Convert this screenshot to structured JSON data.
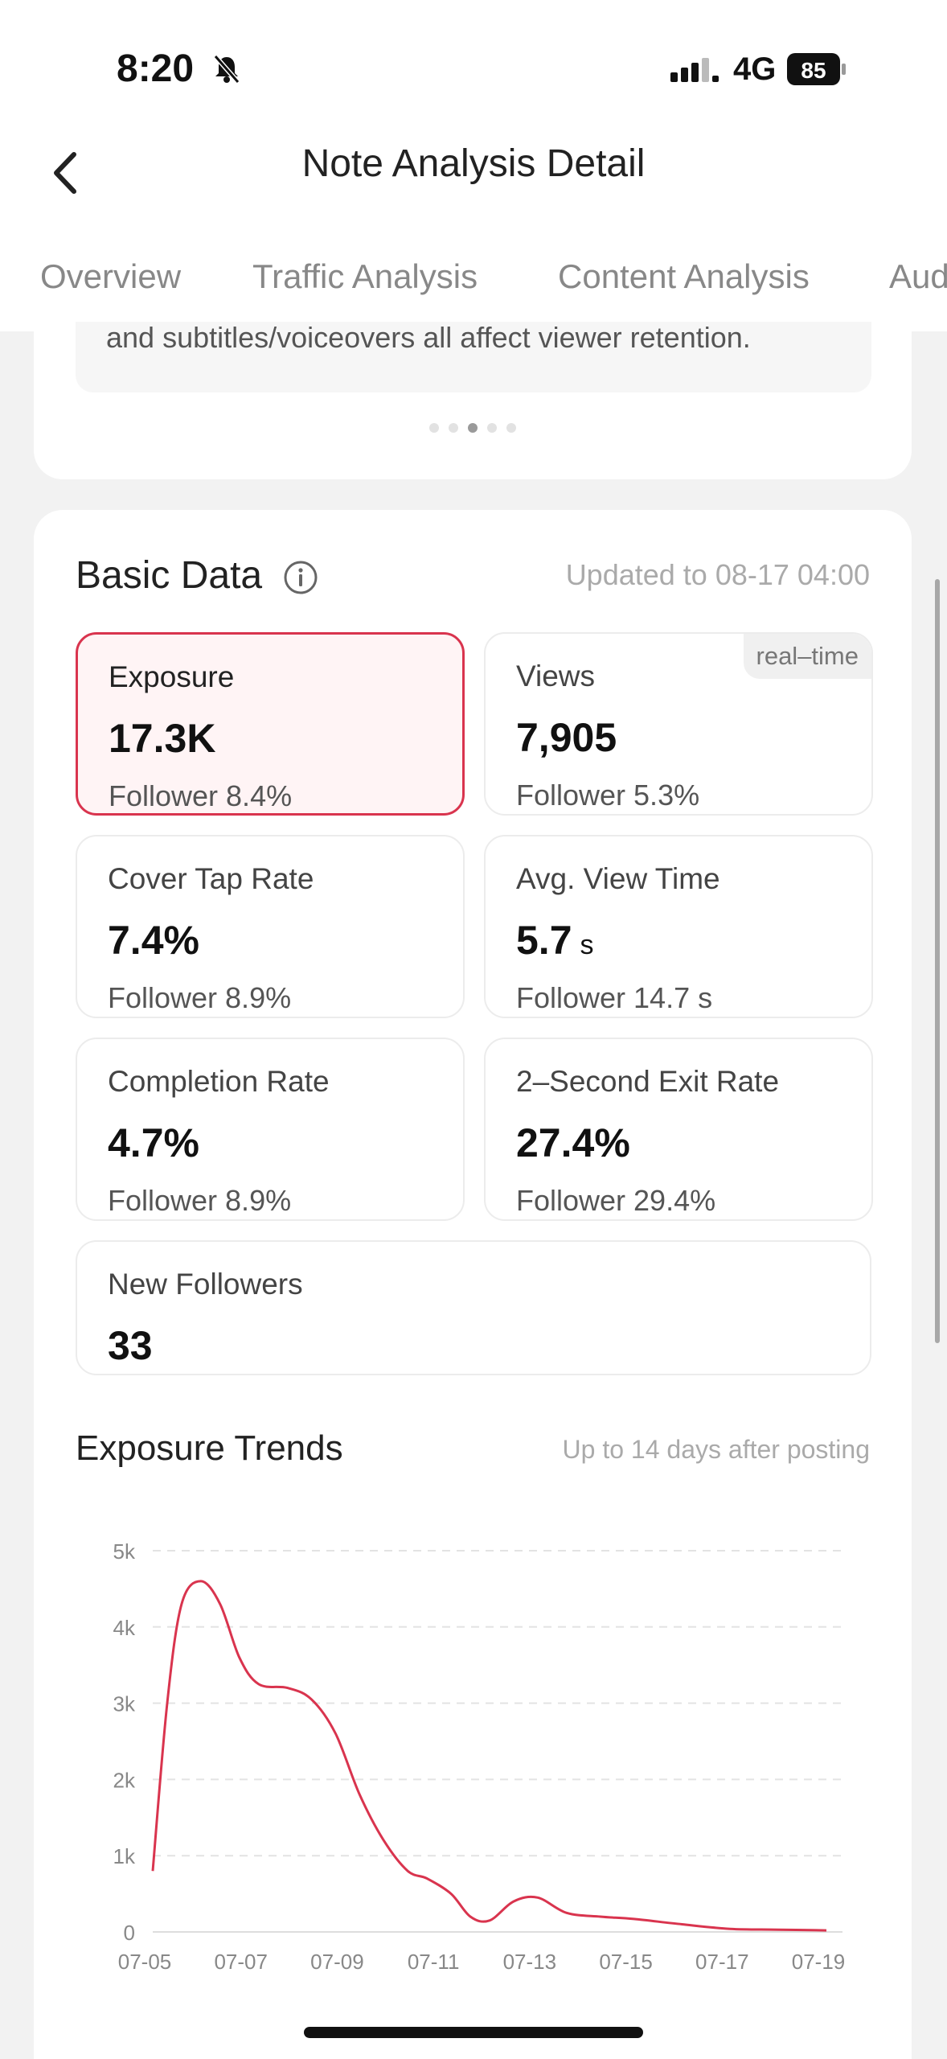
{
  "status_bar": {
    "time": "8:20",
    "network": "4G",
    "battery": "85"
  },
  "header": {
    "title": "Note Analysis Detail"
  },
  "tabs": [
    {
      "label": "Overview"
    },
    {
      "label": "Traffic Analysis"
    },
    {
      "label": "Content Analysis"
    },
    {
      "label": "Aud"
    }
  ],
  "tip_card": {
    "text": "and subtitles/voiceovers all affect viewer retention.",
    "pages": 5,
    "active_page": 3
  },
  "basic_data": {
    "title": "Basic Data",
    "updated": "Updated to 08-17 04:00",
    "metrics": [
      {
        "label": "Exposure",
        "value": "17.3K",
        "unit": "",
        "sub": "Follower 8.4%",
        "selected": true
      },
      {
        "label": "Views",
        "value": "7,905",
        "unit": "",
        "sub": "Follower 5.3%",
        "badge": "real–time"
      },
      {
        "label": "Cover Tap Rate",
        "value": "7.4%",
        "unit": "",
        "sub": "Follower 8.9%"
      },
      {
        "label": "Avg. View Time",
        "value": "5.7",
        "unit": "s",
        "sub": "Follower 14.7 s"
      },
      {
        "label": "Completion Rate",
        "value": "4.7%",
        "unit": "",
        "sub": "Follower 8.9%"
      },
      {
        "label": "2–Second Exit Rate",
        "value": "27.4%",
        "unit": "",
        "sub": "Follower 29.4%"
      },
      {
        "label": "New Followers",
        "value": "33",
        "unit": "",
        "sub": ""
      }
    ]
  },
  "exposure_trends": {
    "title": "Exposure Trends",
    "note": "Up to 14 days after posting"
  },
  "colors": {
    "accent": "#d9344e",
    "selected_bg": "#fff4f5"
  },
  "chart_data": {
    "type": "line",
    "y_ticks": [
      "0",
      "1k",
      "2k",
      "3k",
      "4k",
      "5k"
    ],
    "x_ticks": [
      "07-05",
      "07-07",
      "07-09",
      "07-11",
      "07-13",
      "07-15",
      "07-17",
      "07-19"
    ],
    "ylim": [
      0,
      5000
    ],
    "xlim": [
      0,
      14
    ],
    "grid": true,
    "series": [
      {
        "color": "#d9344e",
        "x": [
          0,
          0.3,
          0.6,
          1,
          1.4,
          1.8,
          2.2,
          2.8,
          3.3,
          3.8,
          4.3,
          4.8,
          5.3,
          5.7,
          6.2,
          6.6,
          7,
          7.5,
          8,
          8.6,
          9.3,
          10,
          11,
          12,
          13,
          14
        ],
        "y": [
          800,
          3000,
          4300,
          4600,
          4300,
          3600,
          3250,
          3200,
          3050,
          2600,
          1800,
          1200,
          800,
          700,
          500,
          200,
          150,
          400,
          450,
          250,
          200,
          170,
          100,
          40,
          30,
          20
        ]
      }
    ]
  }
}
